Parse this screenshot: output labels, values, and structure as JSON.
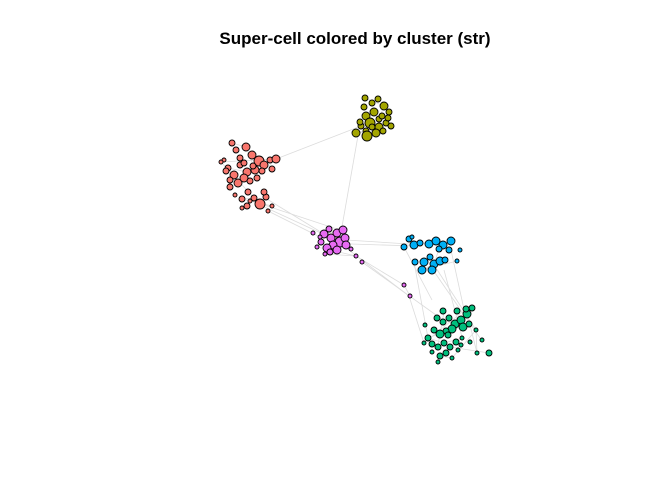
{
  "title": "Super-cell colored by cluster (str)",
  "edge_color": "#dcdcdc",
  "node_stroke": "#000000",
  "clusters": [
    {
      "id": "red",
      "color": "#F8766D"
    },
    {
      "id": "olive",
      "color": "#A3A500"
    },
    {
      "id": "green",
      "color": "#00BF7D"
    },
    {
      "id": "blue",
      "color": "#00B0F6"
    },
    {
      "id": "magenta",
      "color": "#E76BF3"
    }
  ]
}
